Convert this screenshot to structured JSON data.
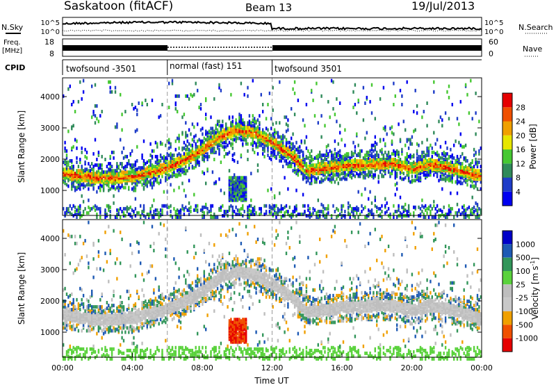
{
  "header": {
    "station": "Saskatoon (fitACF)",
    "beam": "Beam 13",
    "date": "19/Jul/2013"
  },
  "panels": {
    "nsky": {
      "label": "N.Sky",
      "ticks": [
        "10^5",
        "10^0"
      ]
    },
    "nsearch": {
      "label": "N.Search",
      "ticks": [
        "10^5",
        "10^0"
      ]
    },
    "freq": {
      "label_line1": "Freq.",
      "label_line2": "[MHz]",
      "ticks": [
        "18",
        "8"
      ]
    },
    "nave": {
      "label": "Nave",
      "ticks": [
        "60",
        "0"
      ]
    },
    "cpid": {
      "label": "CPID",
      "segments": [
        {
          "name": "twofsound -3501",
          "start": 0,
          "end": 6
        },
        {
          "name": "normal (fast) 151",
          "start": 6,
          "end": 12
        },
        {
          "name": "twofsound 3501",
          "start": 12,
          "end": 24
        }
      ]
    }
  },
  "chart_data": [
    {
      "type": "heatmap",
      "quantity": "power",
      "ylabel": "Slant Range [km]",
      "y_ticks": [
        1000,
        2000,
        3000,
        4000
      ],
      "ylim": [
        200,
        4600
      ],
      "xlim": [
        0,
        24
      ],
      "colorbar": {
        "label": "Power [dB]",
        "ticks": [
          "4",
          "8",
          "12",
          "16",
          "20",
          "24",
          "28"
        ],
        "colors": [
          "#0000f0",
          "#1e3cc8",
          "#2f8a5a",
          "#46c832",
          "#e6e600",
          "#f0a000",
          "#f05000",
          "#e60000"
        ]
      },
      "echo_bands": [
        {
          "x": [
            0,
            2,
            4,
            6,
            7.5,
            9,
            10,
            11,
            12,
            13,
            14,
            16,
            18,
            19,
            20,
            21,
            22,
            24
          ],
          "y": [
            1600,
            1450,
            1500,
            1800,
            2200,
            2800,
            3000,
            2900,
            2600,
            2200,
            1700,
            1850,
            1900,
            1900,
            1750,
            1900,
            1800,
            1500
          ]
        }
      ]
    },
    {
      "type": "heatmap",
      "quantity": "velocity",
      "ylabel": "Slant Range [km]",
      "y_ticks": [
        1000,
        2000,
        3000,
        4000
      ],
      "ylim": [
        200,
        4600
      ],
      "xlim": [
        0,
        24
      ],
      "xlabel": "Time UT",
      "x_ticks": [
        "00:00",
        "04:00",
        "08:00",
        "12:00",
        "16:00",
        "20:00",
        "00:00"
      ],
      "colorbar": {
        "label": "Velocity [m s",
        "label_sup": "-1",
        "label_end": "]",
        "ticks": [
          "1000",
          "500",
          "100",
          "25",
          "-25",
          "-100",
          "-500",
          "-1000"
        ],
        "colors": [
          "#0000c8",
          "#1e5ab4",
          "#32965a",
          "#5ad23c",
          "#bebebe",
          "#c8c8c8",
          "#f0a000",
          "#f05000",
          "#e60000"
        ]
      }
    }
  ]
}
